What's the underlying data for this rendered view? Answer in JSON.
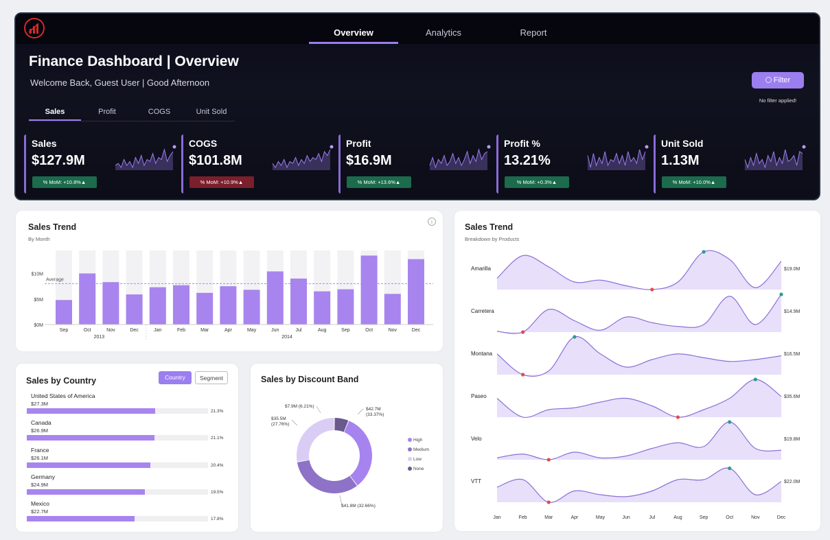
{
  "nav": {
    "tabs": [
      "Overview",
      "Analytics",
      "Report"
    ],
    "active": "Overview"
  },
  "header": {
    "title": "Finance Dashboard | Overview",
    "subtitle": "Welcome Back, Guest User | Good Afternoon",
    "subtabs": [
      "Sales",
      "Profit",
      "COGS",
      "Unit Sold"
    ],
    "filter_label": "Filter",
    "filter_status": "No filter applied!"
  },
  "kpis": [
    {
      "label": "Sales",
      "value": "$127.9M",
      "badge": "% MoM: +10.8%▲",
      "badge_color": "#1b6b4c",
      "spark": [
        6,
        7,
        5,
        9,
        6,
        8,
        5,
        10,
        7,
        11,
        6,
        9,
        8,
        12,
        7,
        10,
        9,
        14,
        8,
        11,
        13
      ]
    },
    {
      "label": "COGS",
      "value": "$101.8M",
      "badge": "% MoM: +10.9%▲",
      "badge_color": "#7a1f2b",
      "spark": [
        7,
        5,
        8,
        6,
        9,
        5,
        8,
        7,
        10,
        6,
        9,
        7,
        11,
        8,
        10,
        9,
        12,
        8,
        13,
        11,
        14
      ]
    },
    {
      "label": "Profit",
      "value": "$16.9M",
      "badge": "% MoM: +13.6%▲",
      "badge_color": "#1b6b4c",
      "spark": [
        5,
        9,
        4,
        8,
        6,
        10,
        5,
        7,
        11,
        6,
        9,
        5,
        8,
        12,
        6,
        10,
        7,
        13,
        8,
        11,
        12
      ]
    },
    {
      "label": "Profit %",
      "value": "13.21%",
      "badge": "% MoM: +0.3%▲",
      "badge_color": "#1b6b4c",
      "spark": [
        10,
        4,
        11,
        5,
        9,
        6,
        12,
        5,
        8,
        7,
        11,
        6,
        10,
        5,
        12,
        7,
        9,
        6,
        13,
        8,
        12
      ]
    },
    {
      "label": "Unit Sold",
      "value": "1.13M",
      "badge": "% MoM: +10.0%▲",
      "badge_color": "#1b6b4c",
      "spark": [
        8,
        4,
        9,
        5,
        11,
        6,
        8,
        4,
        10,
        7,
        12,
        5,
        9,
        6,
        13,
        7,
        8,
        10,
        5,
        12,
        11
      ]
    }
  ],
  "sales_trend_bar": {
    "title": "Sales Trend",
    "subtitle": "By Month",
    "average_label": "Average",
    "chart_data": {
      "type": "bar",
      "categories": [
        "Sep",
        "Oct",
        "Nov",
        "Dec",
        "Jan",
        "Feb",
        "Mar",
        "Apr",
        "May",
        "Jun",
        "Jul",
        "Aug",
        "Sep",
        "Oct",
        "Nov",
        "Dec"
      ],
      "years": [
        {
          "label": "2013"
        },
        {
          "label": "2014"
        }
      ],
      "values": [
        4.8,
        10.0,
        8.3,
        5.9,
        7.3,
        7.7,
        6.2,
        7.5,
        6.8,
        10.4,
        9.0,
        6.5,
        6.9,
        13.5,
        6.0,
        12.8
      ],
      "average": 8.0,
      "ylim": [
        0,
        14.5
      ],
      "yticks": [
        "$0M",
        "$5M",
        "$10M"
      ],
      "ytick_values": [
        0,
        5,
        10
      ]
    }
  },
  "sales_by_country": {
    "title": "Sales by Country",
    "toggle": [
      "Country",
      "Segment"
    ],
    "active_toggle": "Country",
    "chart_data": {
      "type": "bar",
      "categories": [
        "United States of America",
        "Canada",
        "France",
        "Germany",
        "Mexico"
      ],
      "values": [
        27.3,
        26.9,
        26.1,
        24.9,
        22.7
      ],
      "value_labels": [
        "$27.3M",
        "$26.9M",
        "$26.1M",
        "$24.9M",
        "$22.7M"
      ],
      "percent_labels": [
        "21.3%",
        "21.1%",
        "20.4%",
        "19.5%",
        "17.8%"
      ],
      "percents": [
        21.3,
        21.1,
        20.4,
        19.5,
        17.8
      ]
    }
  },
  "sales_by_discount": {
    "title": "Sales by Discount Band",
    "chart_data": {
      "type": "pie",
      "categories": [
        "High",
        "Medium",
        "Low",
        "None"
      ],
      "values": [
        42.7,
        41.8,
        35.5,
        7.9
      ],
      "percents": [
        33.37,
        32.66,
        27.76,
        6.21
      ],
      "labels": [
        "$42.7M (33.37%)",
        "$41.8M (32.66%)",
        "$35.5M (27.76%)",
        "$7.9M (6.21%)"
      ],
      "colors": [
        "#a783ef",
        "#8e72c7",
        "#d9cdf5",
        "#6a5a8c"
      ]
    }
  },
  "sales_trend_products": {
    "title": "Sales Trend",
    "subtitle": "Breakdown by Products",
    "chart_data": {
      "type": "area",
      "x": [
        "Jan",
        "Feb",
        "Mar",
        "Apr",
        "May",
        "Jun",
        "Jul",
        "Aug",
        "Sep",
        "Oct",
        "Nov",
        "Dec"
      ],
      "series": [
        {
          "name": "Amarilla",
          "total": "$19.0M",
          "values": [
            0.3,
            0.9,
            0.6,
            0.2,
            0.25,
            0.1,
            0.0,
            0.2,
            1.0,
            0.8,
            0.05,
            0.75
          ],
          "max_idx": 8,
          "min_idx": 6
        },
        {
          "name": "Carretera",
          "total": "$14.9M",
          "values": [
            0.02,
            0.0,
            0.6,
            0.3,
            0.05,
            0.4,
            0.25,
            0.15,
            0.2,
            0.95,
            0.2,
            1.0
          ],
          "max_idx": 11,
          "min_idx": 1
        },
        {
          "name": "Montana",
          "total": "$16.5M",
          "values": [
            0.55,
            0.0,
            0.1,
            1.0,
            0.55,
            0.2,
            0.4,
            0.55,
            0.45,
            0.35,
            0.4,
            0.5
          ],
          "max_idx": 3,
          "min_idx": 1
        },
        {
          "name": "Paseo",
          "total": "$35.6M",
          "values": [
            0.5,
            0.0,
            0.2,
            0.25,
            0.4,
            0.5,
            0.3,
            0.0,
            0.2,
            0.5,
            1.0,
            0.55
          ],
          "max_idx": 10,
          "min_idx": 7
        },
        {
          "name": "Velo",
          "total": "$19.8M",
          "values": [
            0.05,
            0.15,
            0.0,
            0.2,
            0.05,
            0.1,
            0.3,
            0.45,
            0.35,
            1.0,
            0.3,
            0.25
          ],
          "max_idx": 9,
          "min_idx": 2
        },
        {
          "name": "VTT",
          "total": "$22.0M",
          "values": [
            0.4,
            0.6,
            0.0,
            0.3,
            0.2,
            0.15,
            0.3,
            0.6,
            0.6,
            0.9,
            0.2,
            0.55
          ],
          "max_idx": 9,
          "min_idx": 2
        }
      ]
    }
  },
  "colors": {
    "accent": "#9b7ef0",
    "bar": "#a884ef",
    "area_fill": "#e8dffb",
    "line": "#8b6fd6",
    "max_dot": "#2e9a8e",
    "min_dot": "#e04c4c"
  }
}
